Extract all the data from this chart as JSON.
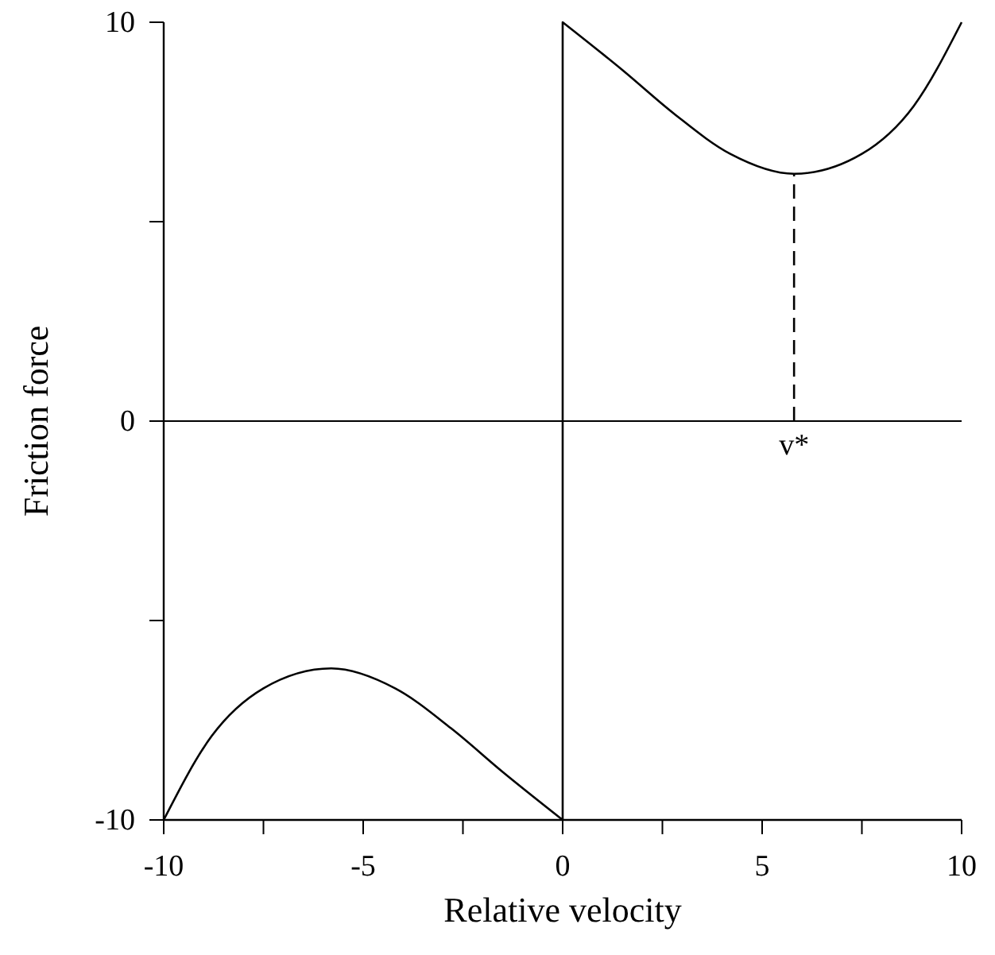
{
  "chart_data": {
    "type": "line",
    "xlabel": "Relative velocity",
    "ylabel": "Friction force",
    "xlim": [
      -10,
      10
    ],
    "ylim": [
      -10,
      10
    ],
    "xticks": [
      -10,
      {
        "value": -7.5,
        "label": null
      },
      -5,
      {
        "value": -2.5,
        "label": null
      },
      0,
      {
        "value": 2.5,
        "label": null
      },
      5,
      {
        "value": 7.5,
        "label": null
      },
      10
    ],
    "yticks": [
      -10,
      {
        "value": -5,
        "label": null
      },
      0,
      {
        "value": 5,
        "label": null
      },
      10
    ],
    "series": [
      {
        "color": "#000000",
        "x": [
          -10,
          -8.8,
          -7.5,
          -5.8,
          -4.2,
          -2.8,
          -1.5,
          0,
          0,
          1.5,
          2.8,
          4.2,
          5.8,
          7.5,
          8.8,
          10
        ],
        "values": [
          -10,
          -7.9,
          -6.7,
          -6.2,
          -6.7,
          -7.7,
          -8.8,
          -10,
          10,
          8.8,
          7.7,
          6.7,
          6.2,
          6.7,
          7.9,
          10
        ]
      },
      {
        "color": "#000000",
        "x": [
          5.8,
          5.8
        ],
        "values": [
          0,
          6.2
        ],
        "line_style": "dashed"
      }
    ],
    "ref_lines": [
      {
        "axis": "y",
        "value": 0,
        "color": "#000000"
      }
    ],
    "annotations": [
      {
        "text": "v*",
        "x": 5.8,
        "y": 0
      }
    ],
    "grid": false,
    "marker": "none",
    "line_style": "solid"
  }
}
